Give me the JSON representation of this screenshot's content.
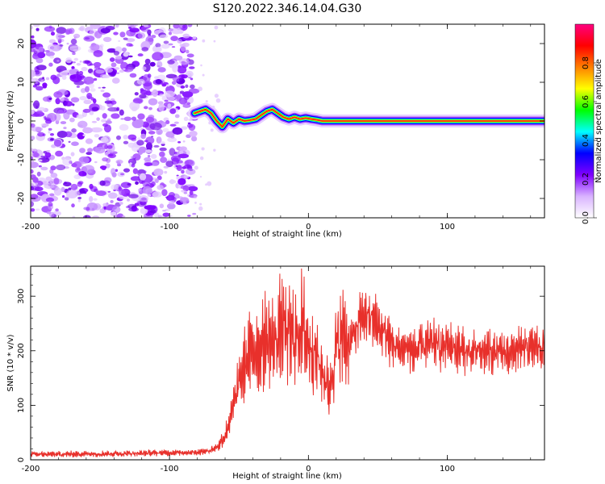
{
  "chart_data": [
    {
      "type": "heatmap",
      "title": "S120.2022.346.14.04.G30",
      "xlabel": "Height of straight line (km)",
      "ylabel": "Frequency (Hz)",
      "xlim": [
        -200,
        170
      ],
      "ylim": [
        -25,
        25
      ],
      "xticks": [
        -200,
        -100,
        0,
        100
      ],
      "yticks": [
        -20,
        -10,
        0,
        10,
        20
      ],
      "colorbar": {
        "label": "Normalized spectral amplitude",
        "range": [
          0,
          1
        ],
        "ticks": [
          0.0,
          0.2,
          0.4,
          0.6,
          0.8
        ],
        "colormap": [
          "#ffffff",
          "#d9b3ff",
          "#7f00ff",
          "#0000ff",
          "#00ffff",
          "#00ff00",
          "#ffff00",
          "#ff8000",
          "#ff0000",
          "#ff0080"
        ]
      },
      "noise_region_x": [
        -200,
        -82
      ],
      "signal_start_x": -82,
      "ridge": {
        "x": [
          -82,
          -78,
          -74,
          -70,
          -66,
          -62,
          -58,
          -54,
          -50,
          -46,
          -42,
          -38,
          -34,
          -30,
          -26,
          -22,
          -18,
          -14,
          -10,
          -6,
          -2,
          2,
          6,
          10,
          20,
          40,
          60,
          80,
          100,
          120,
          140,
          160,
          170
        ],
        "freq": [
          2.0,
          2.5,
          3.0,
          2.0,
          0.0,
          -1.5,
          0.5,
          -0.5,
          0.5,
          0.0,
          0.2,
          0.5,
          1.5,
          2.5,
          3.0,
          2.0,
          1.0,
          0.5,
          1.0,
          0.5,
          0.8,
          0.5,
          0.3,
          0.0,
          0.0,
          0.0,
          0.0,
          0.0,
          0.0,
          0.0,
          0.0,
          0.0,
          0.0
        ]
      }
    },
    {
      "type": "line",
      "xlabel": "Height of straight line (km)",
      "ylabel": "SNR (10 * v/v)",
      "xlim": [
        -200,
        170
      ],
      "ylim": [
        0,
        355
      ],
      "xticks": [
        -200,
        -100,
        0,
        100
      ],
      "yticks": [
        0,
        100,
        200,
        300
      ],
      "series": [
        {
          "name": "SNR",
          "color": "#e8302b",
          "x": [
            -200,
            -180,
            -160,
            -140,
            -120,
            -100,
            -80,
            -72,
            -65,
            -60,
            -55,
            -50,
            -45,
            -40,
            -35,
            -30,
            -25,
            -20,
            -15,
            -10,
            -5,
            0,
            5,
            10,
            15,
            20,
            25,
            30,
            35,
            40,
            45,
            50,
            55,
            60,
            65,
            70,
            75,
            80,
            85,
            90,
            95,
            100,
            110,
            120,
            130,
            140,
            150,
            160,
            170
          ],
          "values": [
            10,
            10,
            11,
            11,
            12,
            13,
            14,
            16,
            25,
            45,
            85,
            140,
            180,
            200,
            210,
            220,
            210,
            245,
            230,
            225,
            250,
            215,
            195,
            165,
            125,
            205,
            225,
            215,
            240,
            265,
            260,
            245,
            230,
            215,
            200,
            210,
            195,
            205,
            210,
            215,
            205,
            210,
            200,
            195,
            200,
            195,
            200,
            205,
            205
          ]
        }
      ]
    }
  ]
}
